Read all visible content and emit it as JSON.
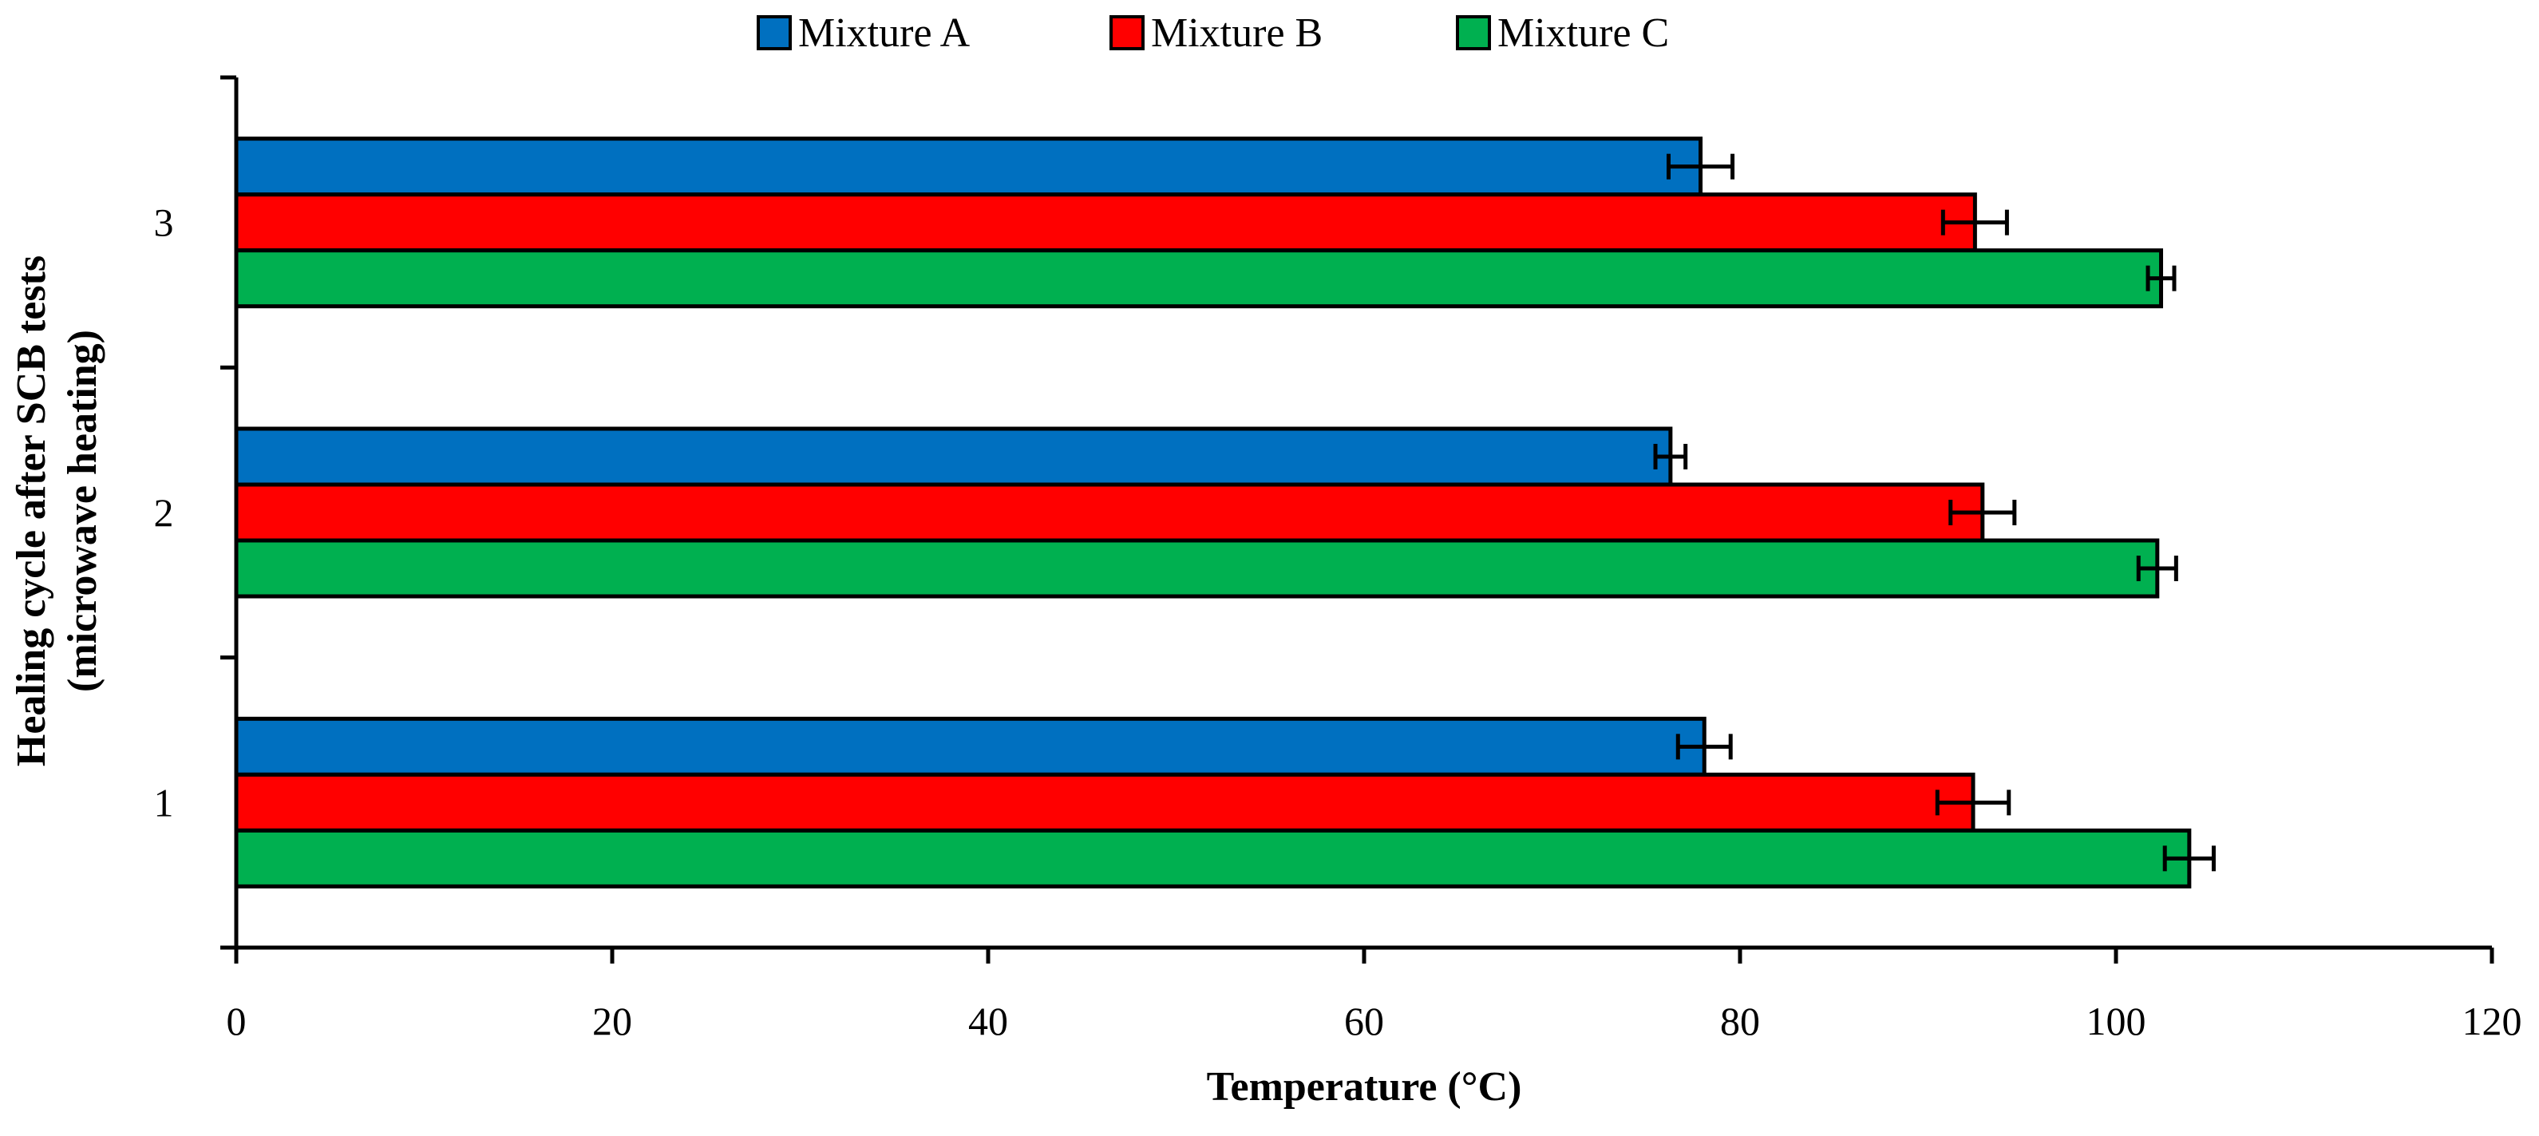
{
  "chart_data": {
    "type": "bar",
    "orientation": "horizontal",
    "title": "",
    "xlabel": "Temperature (°C)",
    "ylabel_lines": [
      "Healing cycle after SCB tests",
      "(microwave heating)"
    ],
    "categories": [
      "1",
      "2",
      "3"
    ],
    "xlim": [
      0,
      120
    ],
    "xticks": [
      "0",
      "20",
      "40",
      "60",
      "80",
      "100",
      "120"
    ],
    "grid": false,
    "legend_position": "top-center",
    "series": [
      {
        "name": "Mixture A",
        "color": "#0070C0",
        "values": [
          78.1,
          76.3,
          77.9
        ],
        "errors": [
          1.4,
          0.8,
          1.7
        ]
      },
      {
        "name": "Mixture B",
        "color": "#FF0000",
        "values": [
          92.4,
          92.9,
          92.5
        ],
        "errors": [
          1.9,
          1.7,
          1.7
        ]
      },
      {
        "name": "Mixture C",
        "color": "#00B050",
        "values": [
          103.9,
          102.2,
          102.4
        ],
        "errors": [
          1.3,
          1.0,
          0.7
        ]
      }
    ]
  }
}
